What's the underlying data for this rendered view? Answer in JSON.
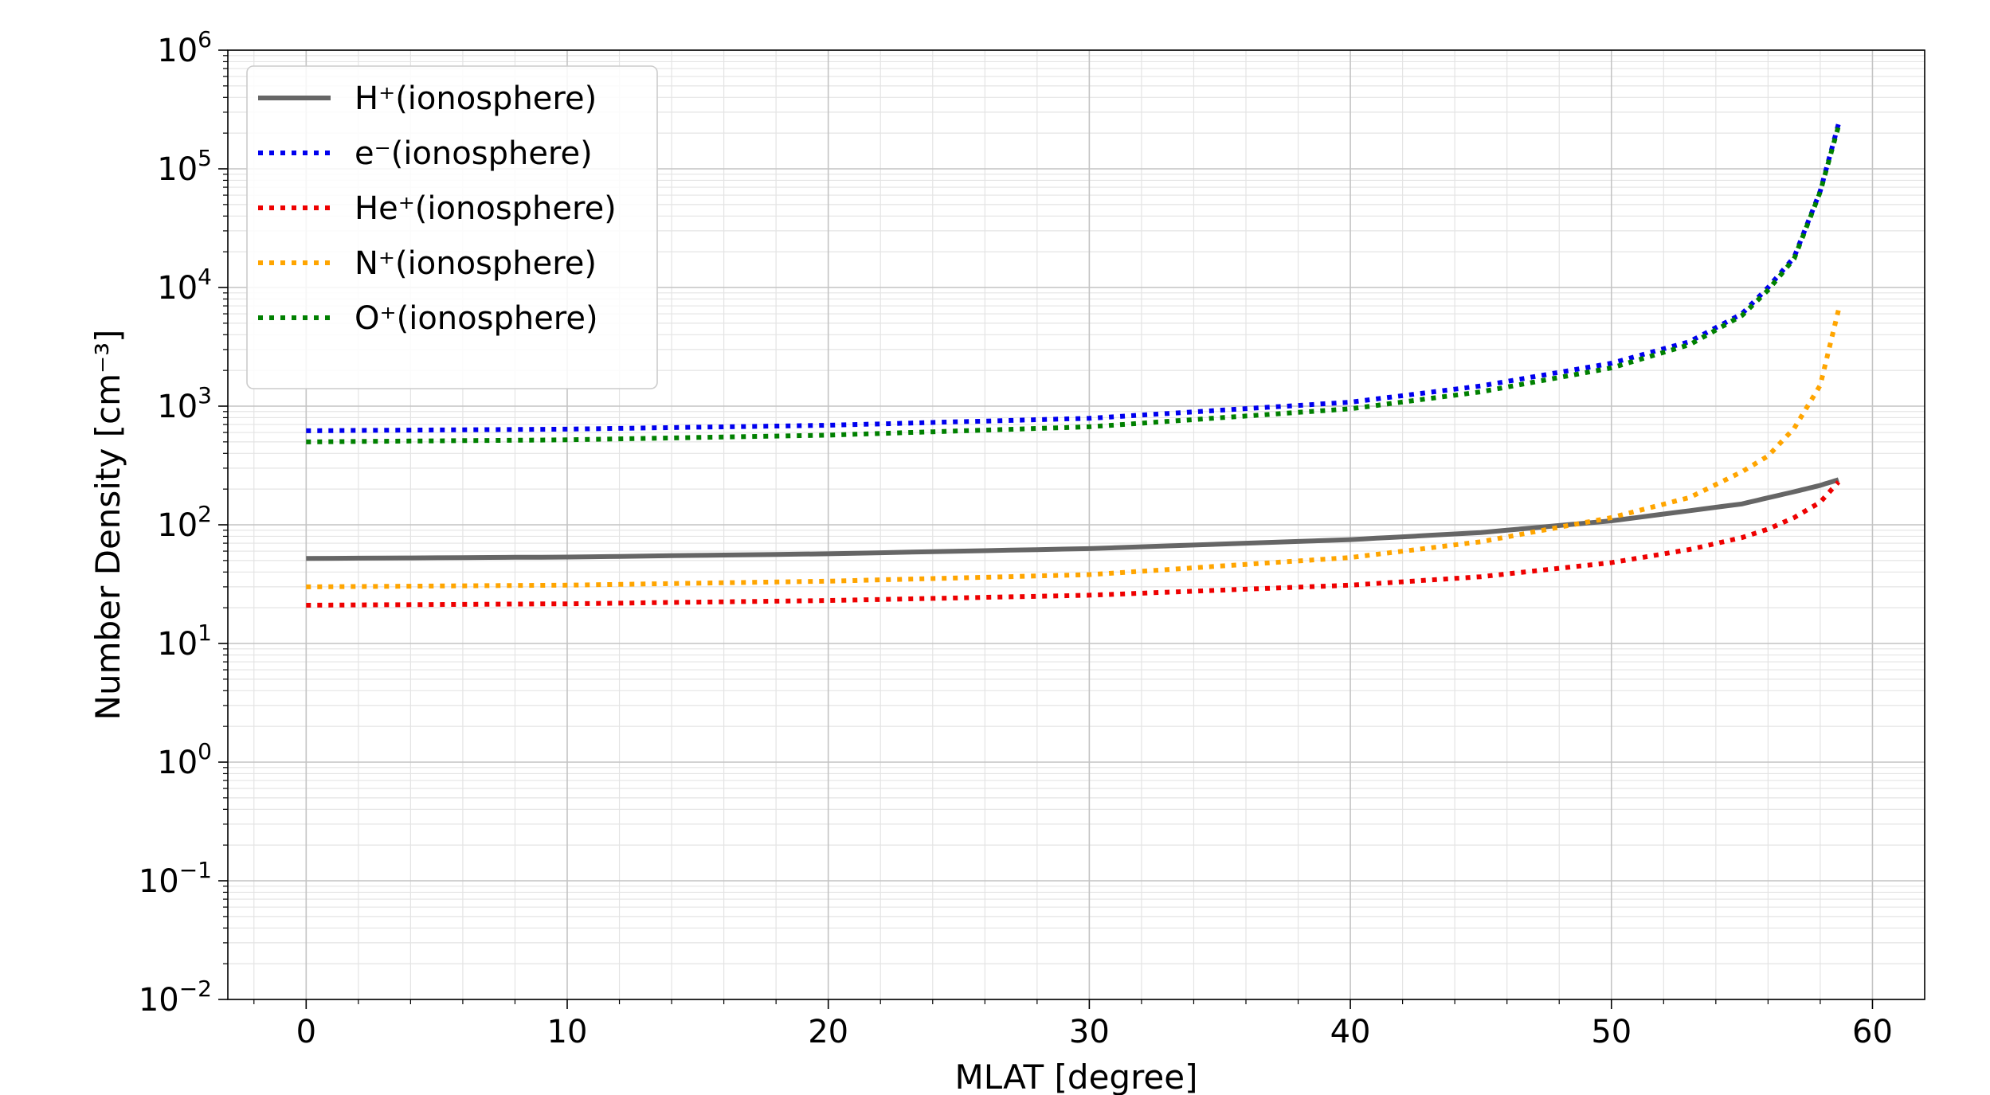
{
  "chart_data": {
    "type": "line",
    "title": "",
    "xlabel": "MLAT [degree]",
    "ylabel": "Number Density [cm⁻³]",
    "y_scale": "log",
    "xlim": [
      -3,
      62
    ],
    "ylim": [
      0.01,
      1000000
    ],
    "x_ticks": [
      0,
      10,
      20,
      30,
      40,
      50,
      60
    ],
    "x_tick_labels": [
      "0",
      "10",
      "20",
      "30",
      "40",
      "50",
      "60"
    ],
    "y_ticks": [
      0.01,
      0.1,
      1,
      10,
      100,
      1000,
      10000,
      100000,
      1000000
    ],
    "y_tick_labels": [
      {
        "base": "10",
        "exp": "−2"
      },
      {
        "base": "10",
        "exp": "−1"
      },
      {
        "base": "10",
        "exp": "0"
      },
      {
        "base": "10",
        "exp": "1"
      },
      {
        "base": "10",
        "exp": "2"
      },
      {
        "base": "10",
        "exp": "3"
      },
      {
        "base": "10",
        "exp": "4"
      },
      {
        "base": "10",
        "exp": "5"
      },
      {
        "base": "10",
        "exp": "6"
      }
    ],
    "grid": true,
    "minor_grid": true,
    "legend_position": "upper-left",
    "series": [
      {
        "name": "H⁺(ionosphere)",
        "color": "#666666",
        "style": "solid",
        "x": [
          0,
          10,
          20,
          30,
          40,
          45,
          50,
          55,
          57,
          58,
          58.7
        ],
        "y": [
          52,
          53.5,
          57,
          63,
          75,
          86,
          108,
          150,
          190,
          215,
          240
        ]
      },
      {
        "name": "e⁻(ionosphere)",
        "color": "#0000ee",
        "style": "dotted",
        "x": [
          0,
          10,
          20,
          30,
          40,
          45,
          50,
          53,
          55,
          56,
          57,
          58,
          58.7
        ],
        "y": [
          620,
          640,
          690,
          790,
          1080,
          1480,
          2300,
          3500,
          6000,
          10000,
          18000,
          65000,
          240000
        ]
      },
      {
        "name": "He⁺(ionosphere)",
        "color": "#ee0000",
        "style": "dotted",
        "x": [
          0,
          10,
          20,
          30,
          40,
          45,
          50,
          53,
          55,
          56,
          57,
          58,
          58.7
        ],
        "y": [
          21,
          21.6,
          23,
          25.5,
          31,
          36.5,
          48,
          62,
          78,
          92,
          115,
          155,
          230
        ]
      },
      {
        "name": "N⁺(ionosphere)",
        "color": "#ffa500",
        "style": "dotted",
        "x": [
          0,
          10,
          20,
          30,
          40,
          45,
          50,
          53,
          55,
          56,
          57,
          58,
          58.7
        ],
        "y": [
          30,
          31,
          33.5,
          38,
          53,
          72,
          115,
          170,
          280,
          380,
          650,
          1500,
          6500
        ]
      },
      {
        "name": "O⁺(ionosphere)",
        "color": "#008000",
        "style": "dotted",
        "x": [
          0,
          10,
          20,
          30,
          40,
          45,
          50,
          53,
          55,
          56,
          57,
          58,
          58.7
        ],
        "y": [
          500,
          520,
          570,
          670,
          950,
          1320,
          2100,
          3300,
          5800,
          9500,
          17500,
          64000,
          230000
        ]
      }
    ]
  }
}
